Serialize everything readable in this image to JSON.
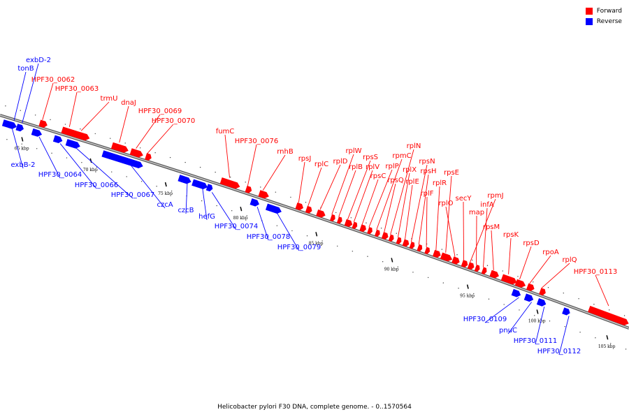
{
  "legend": [
    {
      "label": "Forward",
      "color": "#ff0000"
    },
    {
      "label": "Reverse",
      "color": "#0000ff"
    }
  ],
  "caption": "Helicobacter pylori F30 DNA, complete genome. - 0..1570564",
  "colors": {
    "forward": "#ff0000",
    "reverse": "#0000ff",
    "backbone": "#888888"
  },
  "ticks": [
    "65 kbp",
    "70 kbp",
    "75 kbp",
    "80 kbp",
    "85 kbp",
    "90 kbp",
    "95 kbp",
    "100 kbp",
    "105 kbp"
  ],
  "forward_genes": [
    "HPF30_0062",
    "HPF30_0063",
    "trmU",
    "dnaJ",
    "HPF30_0069",
    "HPF30_0070",
    "fumC",
    "HPF30_0076",
    "rnhB",
    "rpsJ",
    "rplC",
    "rplD",
    "rplW",
    "rplB",
    "rpsS",
    "rplV",
    "rpsC",
    "rplP",
    "rpmC",
    "rpsQ",
    "rplN",
    "rplX",
    "rplE",
    "rpsN",
    "rpsH",
    "rplF",
    "rplR",
    "rpsE",
    "rplO",
    "secY",
    "rpmJ",
    "map",
    "infA",
    "rpsM",
    "rpsK",
    "rpsD",
    "rpoA",
    "rplQ",
    "HPF30_0113"
  ],
  "reverse_genes": [
    "exbD-2",
    "tonB",
    "exbB-2",
    "HPF30_0064",
    "HPF30_0066",
    "HPF30_0067",
    "czcA",
    "czcB",
    "hefG",
    "HPF30_0074",
    "HPF30_0078",
    "HPF30_0079",
    "HPF30_0109",
    "pnuC",
    "HPF30_0111",
    "HPF30_0112"
  ]
}
